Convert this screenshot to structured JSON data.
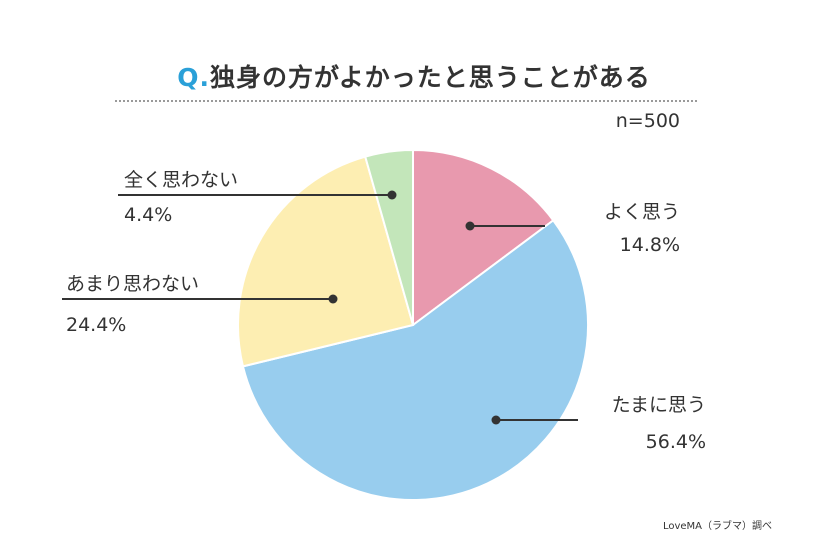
{
  "title": {
    "prefix": "Q.",
    "text": "独身の方がよかったと思うことがある"
  },
  "sample": "n=500",
  "source": "LoveMA（ラブマ）調べ",
  "chart_data": {
    "type": "pie",
    "slices": [
      {
        "label": "よく思う",
        "value": 14.8,
        "value_text": "14.8%",
        "color": "#e899ae"
      },
      {
        "label": "たまに思う",
        "value": 56.4,
        "value_text": "56.4%",
        "color": "#98cdee"
      },
      {
        "label": "あまり思わない",
        "value": 24.4,
        "value_text": "24.4%",
        "color": "#fdeeb2"
      },
      {
        "label": "全く思わない",
        "value": 4.4,
        "value_text": "4.4%",
        "color": "#c3e6ba"
      }
    ]
  }
}
